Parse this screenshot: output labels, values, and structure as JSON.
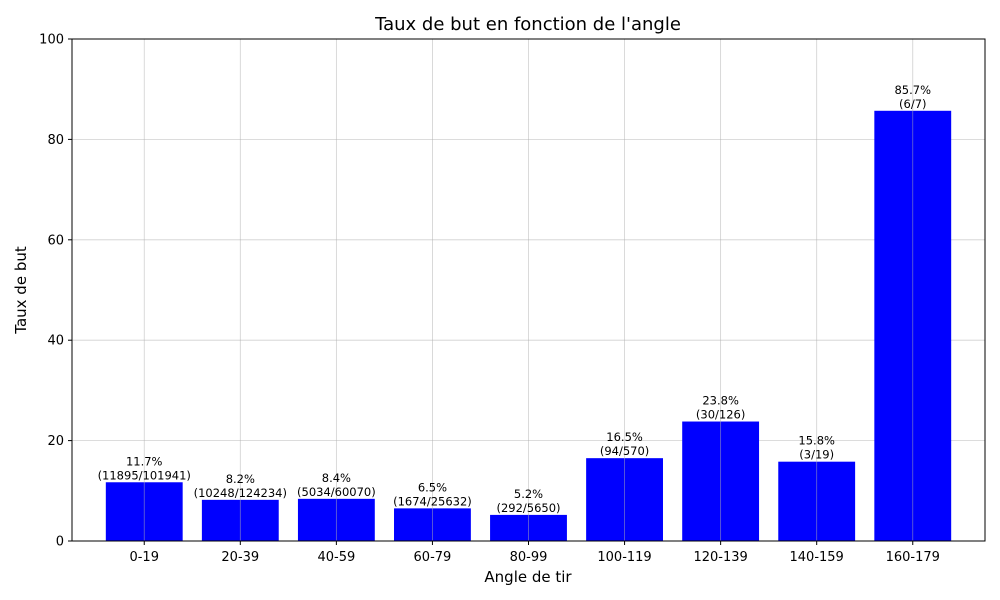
{
  "chart_data": {
    "type": "bar",
    "title": "Taux de but en fonction de l'angle",
    "xlabel": "Angle de tir",
    "ylabel": "Taux de but",
    "ylim": [
      0,
      100
    ],
    "yticks": [
      0,
      20,
      40,
      60,
      80,
      100
    ],
    "grid": true,
    "bar_color": "#0000ff",
    "categories": [
      "0-19",
      "20-39",
      "40-59",
      "60-79",
      "80-99",
      "100-119",
      "120-139",
      "140-159",
      "160-179"
    ],
    "values": [
      11.7,
      8.2,
      8.4,
      6.5,
      5.2,
      16.5,
      23.8,
      15.8,
      85.7
    ],
    "percent_labels": [
      "11.7%",
      "8.2%",
      "8.4%",
      "6.5%",
      "5.2%",
      "16.5%",
      "23.8%",
      "15.8%",
      "85.7%"
    ],
    "count_labels": [
      "(11895/101941)",
      "(10248/124234)",
      "(5034/60070)",
      "(1674/25632)",
      "(292/5650)",
      "(94/570)",
      "(30/126)",
      "(3/19)",
      "(6/7)"
    ]
  }
}
